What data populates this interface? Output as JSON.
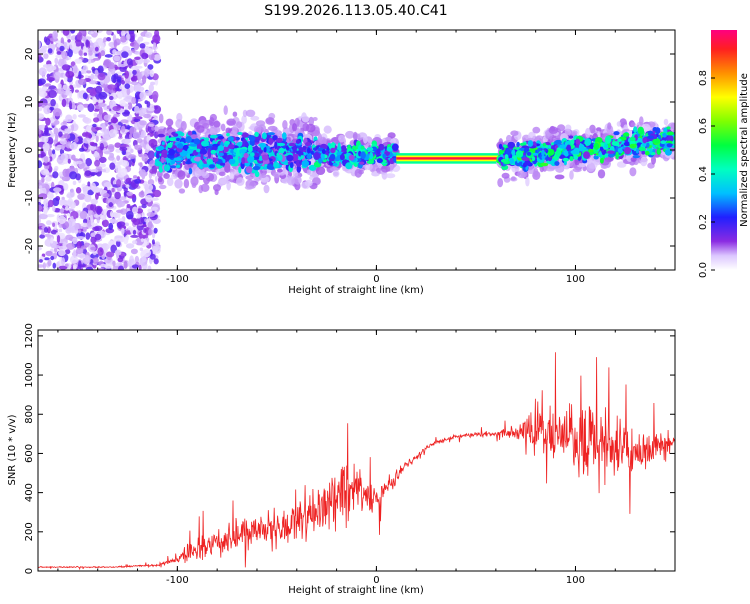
{
  "title": "S199.2026.113.05.40.C41",
  "chart_data": [
    {
      "type": "heatmap",
      "xlabel": "Height of straight line (km)",
      "ylabel": "Frequency (Hz)",
      "xlim": [
        -170,
        150
      ],
      "ylim": [
        -25,
        25
      ],
      "xticks": [
        -100,
        0,
        100
      ],
      "xtick_labels": [
        "-100",
        "0",
        "100"
      ],
      "yticks": [
        -20,
        -10,
        0,
        10,
        20
      ],
      "ytick_labels": [
        "-20",
        "-10",
        "0",
        "10",
        "20"
      ],
      "colorbar": {
        "label": "Normalized spectral amplitude",
        "range": [
          0,
          1
        ],
        "ticks": [
          0.0,
          0.2,
          0.4,
          0.6,
          0.8
        ],
        "tick_labels": [
          "0.0",
          "0.2",
          "0.4",
          "0.6",
          "0.8"
        ]
      },
      "regions": [
        {
          "name": "noise",
          "x_range": [
            -170,
            -110
          ],
          "freq_range": [
            -25,
            25
          ],
          "amplitude": 0.15
        },
        {
          "name": "broad-band",
          "x_range": [
            -110,
            -30
          ],
          "freq_range": [
            -6,
            5
          ],
          "amplitude": 0.3
        },
        {
          "name": "narrowing",
          "x_range": [
            -30,
            10
          ],
          "freq_range": [
            -4,
            2
          ],
          "amplitude": 0.35
        },
        {
          "name": "tone",
          "x_range": [
            10,
            62
          ],
          "freq_range": [
            -2.5,
            -1
          ],
          "amplitude": 0.95
        },
        {
          "name": "rising",
          "x_range": [
            62,
            150
          ],
          "freq_range": [
            -3,
            4
          ],
          "amplitude": 0.4
        }
      ]
    },
    {
      "type": "line",
      "xlabel": "Height of straight line (km)",
      "ylabel": "SNR (10 * v/v)",
      "xlim": [
        -170,
        150
      ],
      "ylim": [
        0,
        1230
      ],
      "xticks": [
        -100,
        0,
        100
      ],
      "xtick_labels": [
        "-100",
        "0",
        "100"
      ],
      "yticks": [
        0,
        200,
        400,
        600,
        800,
        1000,
        1200
      ],
      "ytick_labels": [
        "0",
        "200",
        "400",
        "600",
        "800",
        "1000",
        "1200"
      ],
      "series": [
        {
          "name": "SNR",
          "color": "#ee2222",
          "x": [
            -170,
            -160,
            -150,
            -140,
            -130,
            -120,
            -110,
            -100,
            -95,
            -90,
            -80,
            -70,
            -60,
            -50,
            -40,
            -30,
            -20,
            -15,
            -10,
            -5,
            0,
            5,
            10,
            15,
            20,
            25,
            30,
            40,
            50,
            60,
            70,
            80,
            90,
            100,
            110,
            115,
            120,
            125,
            130,
            140,
            150
          ],
          "y": [
            20,
            20,
            20,
            20,
            20,
            25,
            30,
            60,
            90,
            110,
            150,
            180,
            200,
            220,
            260,
            320,
            380,
            400,
            440,
            390,
            360,
            420,
            480,
            540,
            580,
            630,
            660,
            685,
            695,
            700,
            710,
            720,
            700,
            680,
            640,
            620,
            600,
            620,
            600,
            640,
            660
          ],
          "spread": [
            5,
            5,
            5,
            5,
            5,
            8,
            10,
            20,
            60,
            80,
            100,
            120,
            130,
            160,
            180,
            200,
            220,
            260,
            200,
            140,
            100,
            80,
            50,
            30,
            25,
            20,
            15,
            15,
            15,
            20,
            60,
            150,
            220,
            250,
            300,
            330,
            280,
            200,
            180,
            100,
            90
          ]
        }
      ]
    }
  ]
}
